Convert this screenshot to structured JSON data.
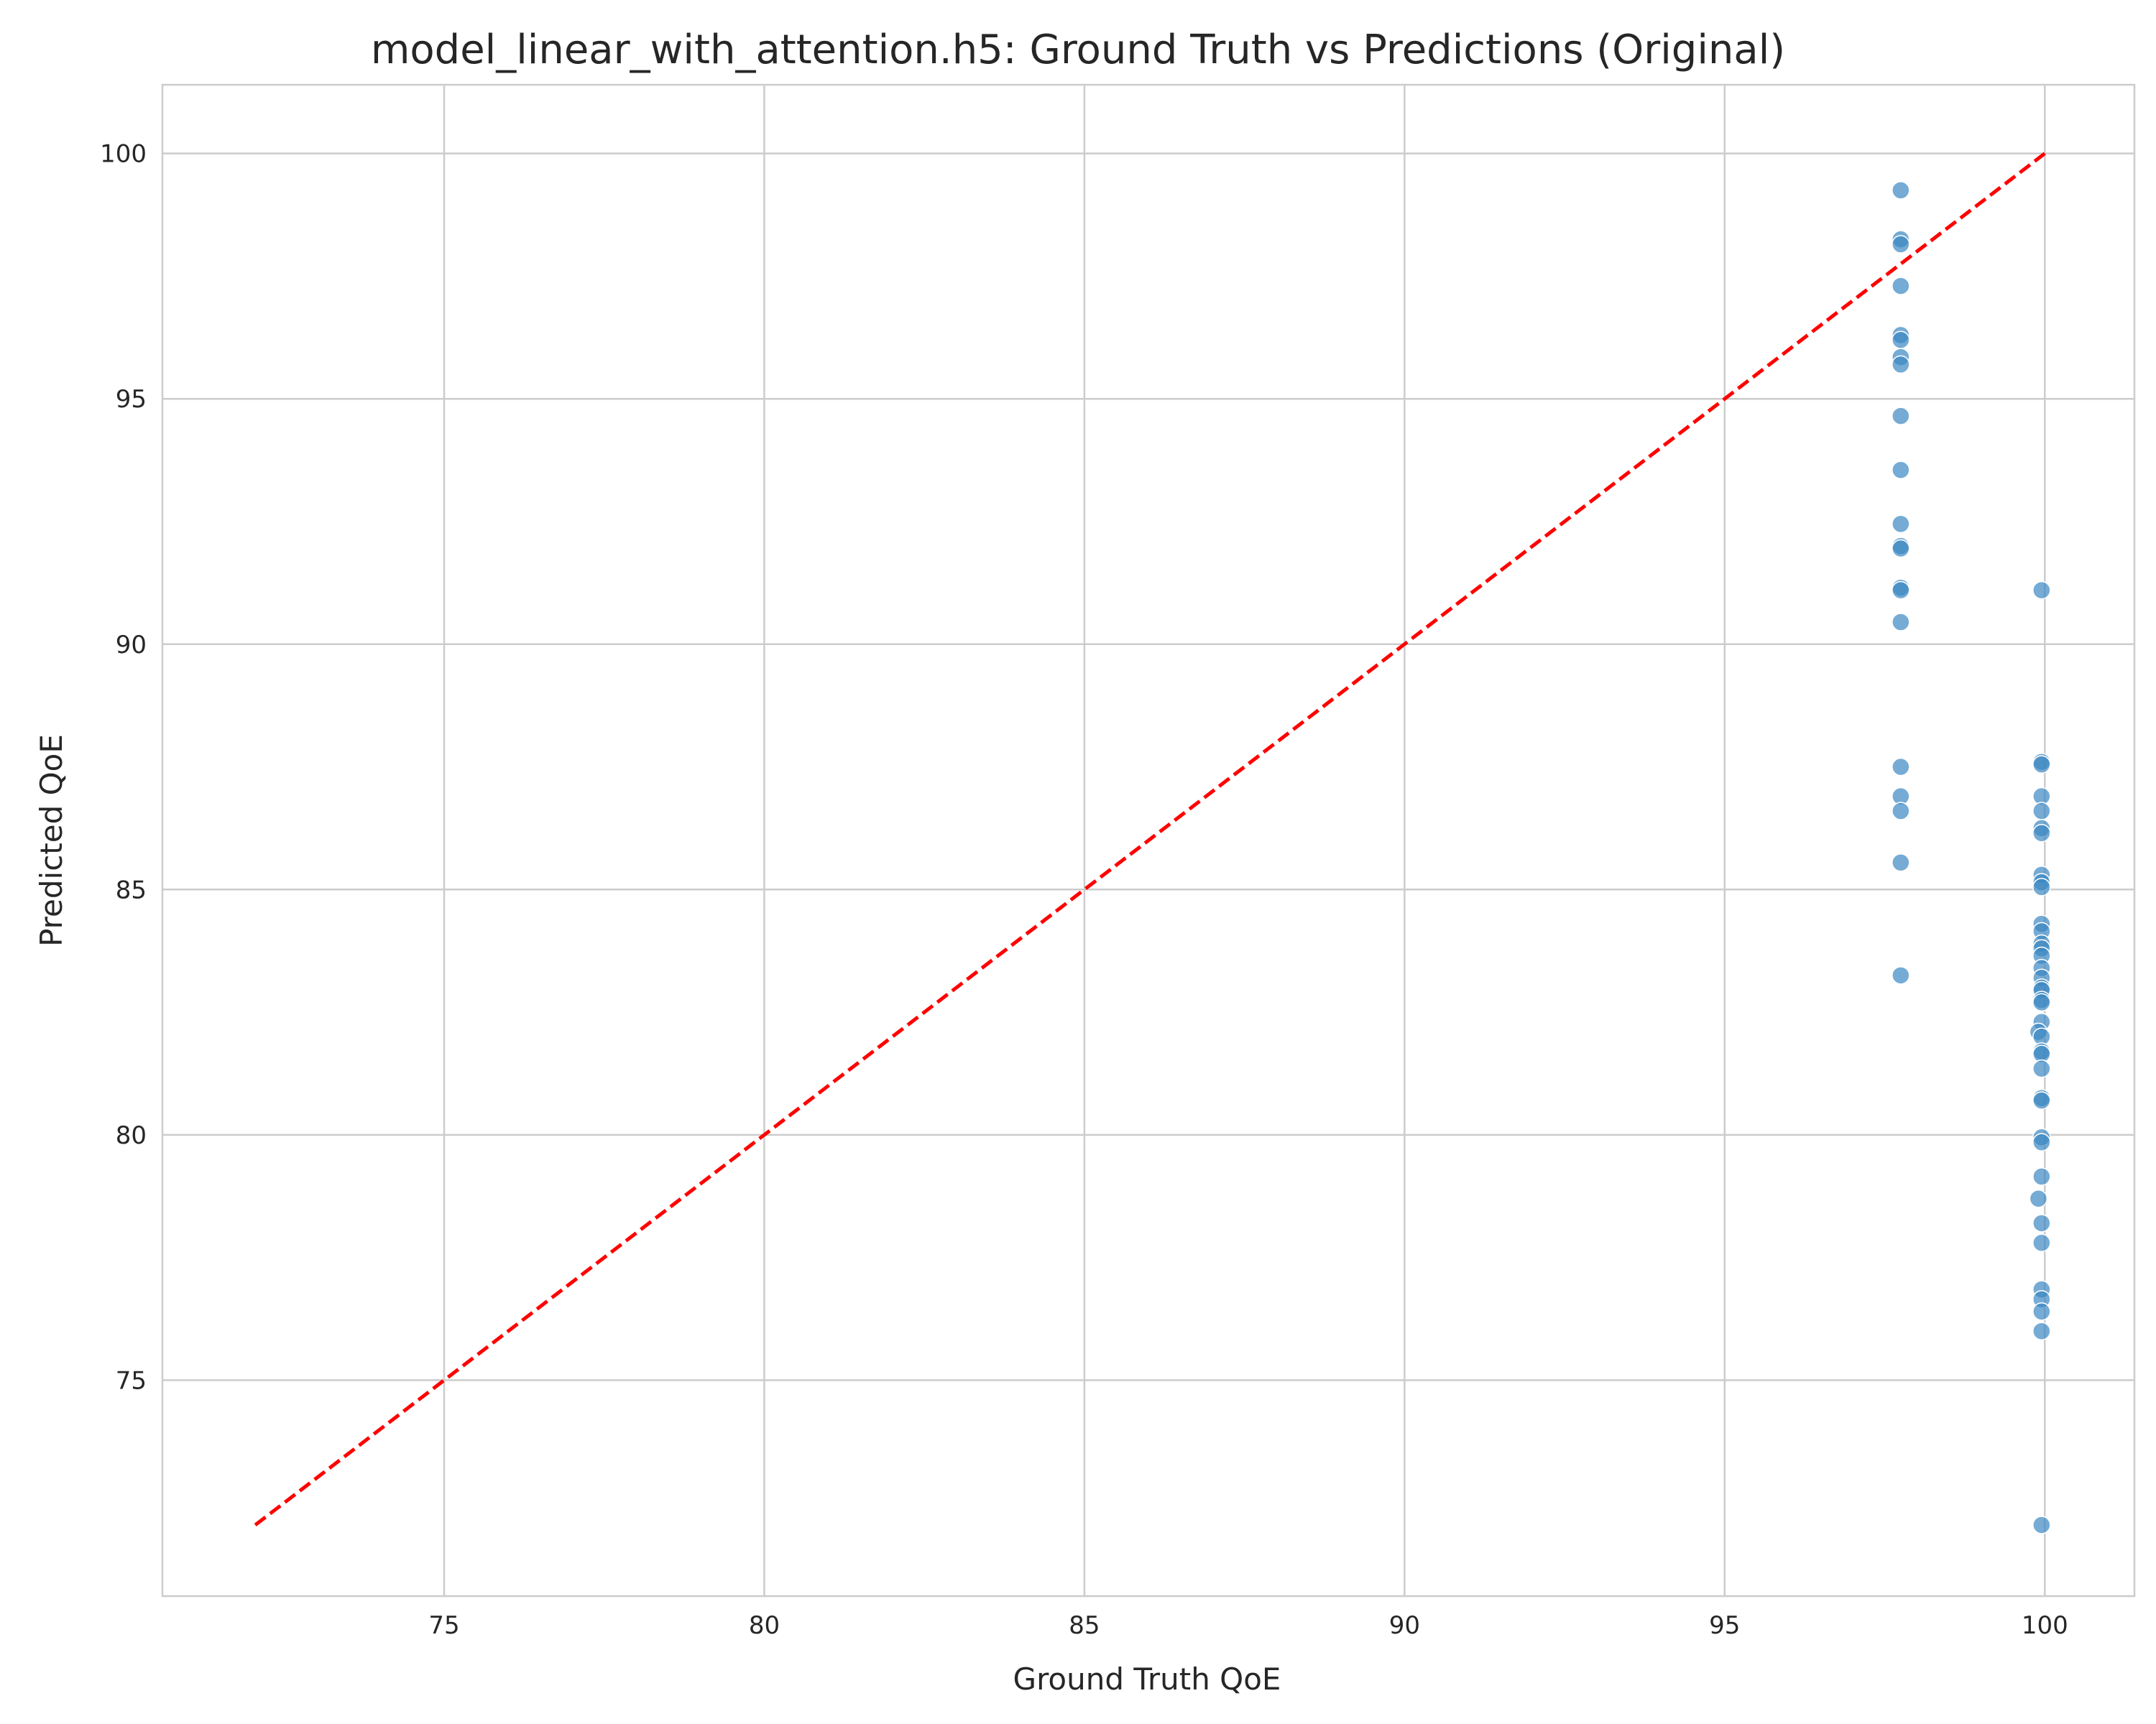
{
  "chart_data": {
    "type": "scatter",
    "title": "model_linear_with_attention.h5: Ground Truth vs Predictions (Original)",
    "xlabel": "Ground Truth QoE",
    "ylabel": "Predicted QoE",
    "xlim": [
      70.6,
      101.4
    ],
    "ylim": [
      70.6,
      101.4
    ],
    "xticks": [
      75,
      80,
      85,
      90,
      95,
      100
    ],
    "yticks": [
      75,
      80,
      85,
      90,
      95,
      100
    ],
    "xtick_labels": [
      "75",
      "80",
      "85",
      "90",
      "95",
      "100"
    ],
    "ytick_labels": [
      "75",
      "80",
      "85",
      "90",
      "95",
      "100"
    ],
    "grid": true,
    "series": [
      {
        "type": "scatter",
        "color": "#3a87c2",
        "points": [
          [
            97.75,
            99.25
          ],
          [
            97.75,
            98.25
          ],
          [
            97.75,
            98.15
          ],
          [
            97.75,
            97.3
          ],
          [
            97.75,
            96.3
          ],
          [
            97.75,
            96.2
          ],
          [
            97.75,
            95.85
          ],
          [
            97.75,
            95.7
          ],
          [
            97.75,
            94.65
          ],
          [
            97.75,
            93.55
          ],
          [
            97.75,
            92.45
          ],
          [
            97.75,
            92.0
          ],
          [
            97.75,
            91.95
          ],
          [
            97.75,
            91.15
          ],
          [
            97.75,
            91.1
          ],
          [
            97.75,
            90.45
          ],
          [
            97.75,
            87.5
          ],
          [
            97.75,
            86.9
          ],
          [
            97.75,
            86.6
          ],
          [
            97.75,
            85.55
          ],
          [
            97.75,
            83.25
          ],
          [
            99.95,
            91.1
          ],
          [
            99.95,
            87.6
          ],
          [
            99.95,
            87.55
          ],
          [
            99.95,
            86.9
          ],
          [
            99.95,
            86.6
          ],
          [
            99.95,
            86.25
          ],
          [
            99.95,
            86.15
          ],
          [
            99.95,
            85.3
          ],
          [
            99.95,
            85.15
          ],
          [
            99.95,
            85.05
          ],
          [
            99.95,
            84.3
          ],
          [
            99.95,
            84.15
          ],
          [
            99.95,
            83.9
          ],
          [
            99.95,
            83.8
          ],
          [
            99.95,
            83.65
          ],
          [
            99.95,
            83.4
          ],
          [
            99.95,
            83.2
          ],
          [
            99.95,
            83.0
          ],
          [
            99.95,
            82.95
          ],
          [
            99.95,
            82.75
          ],
          [
            99.95,
            82.7
          ],
          [
            99.95,
            82.3
          ],
          [
            99.9,
            82.1
          ],
          [
            99.95,
            82.0
          ],
          [
            99.95,
            81.7
          ],
          [
            99.95,
            81.65
          ],
          [
            99.95,
            81.35
          ],
          [
            99.95,
            80.75
          ],
          [
            99.95,
            80.7
          ],
          [
            99.95,
            79.95
          ],
          [
            99.95,
            79.85
          ],
          [
            99.95,
            79.15
          ],
          [
            99.9,
            78.7
          ],
          [
            99.95,
            78.2
          ],
          [
            99.95,
            77.8
          ],
          [
            99.95,
            76.85
          ],
          [
            99.95,
            76.65
          ],
          [
            99.95,
            76.4
          ],
          [
            99.95,
            76.0
          ],
          [
            99.95,
            72.05
          ]
        ]
      },
      {
        "type": "line",
        "style": "dashed",
        "color": "#ff0000",
        "points": [
          [
            72.05,
            72.05
          ],
          [
            100,
            100
          ]
        ]
      }
    ]
  }
}
